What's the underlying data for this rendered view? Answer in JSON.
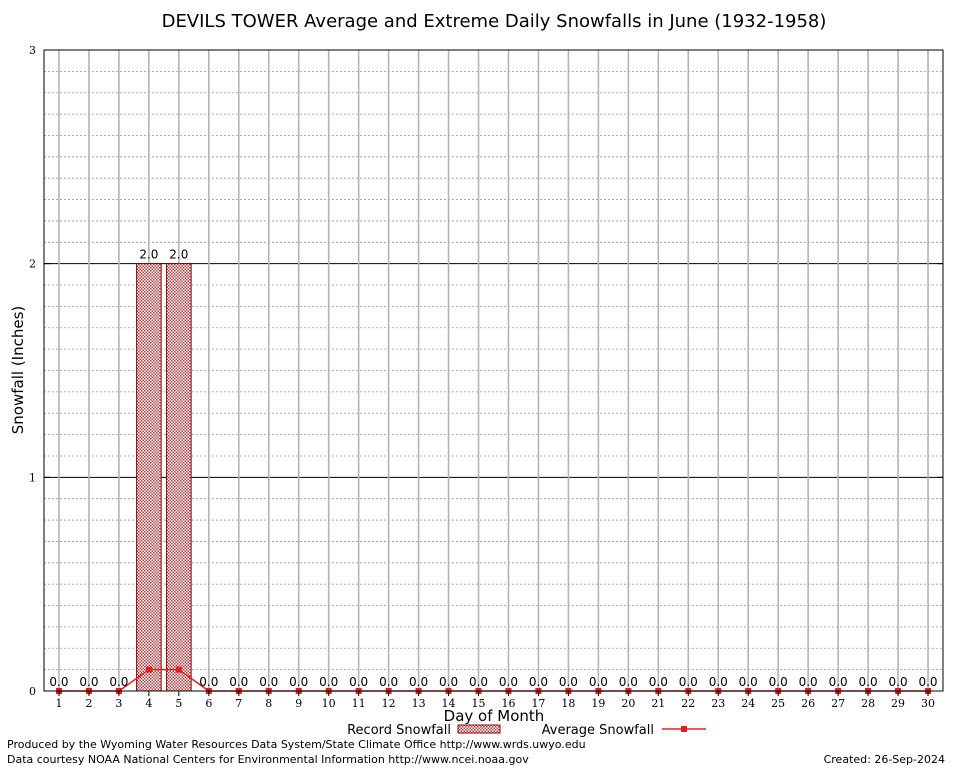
{
  "chart_data": {
    "type": "bar",
    "title": "DEVILS TOWER Average and Extreme Daily Snowfalls in June (1932-1958)",
    "xlabel": "Day of Month",
    "ylabel": "Snowfall (Inches)",
    "ylim": [
      0,
      3
    ],
    "yticks": [
      "0",
      "1",
      "2",
      "3"
    ],
    "grid": true,
    "categories": [
      "1",
      "2",
      "3",
      "4",
      "5",
      "6",
      "7",
      "8",
      "9",
      "10",
      "11",
      "12",
      "13",
      "14",
      "15",
      "16",
      "17",
      "18",
      "19",
      "20",
      "21",
      "22",
      "23",
      "24",
      "25",
      "26",
      "27",
      "28",
      "29",
      "30"
    ],
    "series": [
      {
        "name": "Record Snowfall",
        "kind": "bar",
        "color": "#cc0000",
        "values": [
          0,
          0,
          0,
          2.0,
          2.0,
          0,
          0,
          0,
          0,
          0,
          0,
          0,
          0,
          0,
          0,
          0,
          0,
          0,
          0,
          0,
          0,
          0,
          0,
          0,
          0,
          0,
          0,
          0,
          0,
          0
        ],
        "labels": [
          "0.0",
          "0.0",
          "0.0",
          "2.0",
          "2.0",
          "0.0",
          "0.0",
          "0.0",
          "0.0",
          "0.0",
          "0.0",
          "0.0",
          "0.0",
          "0.0",
          "0.0",
          "0.0",
          "0.0",
          "0.0",
          "0.0",
          "0.0",
          "0.0",
          "0.0",
          "0.0",
          "0.0",
          "0.0",
          "0.0",
          "0.0",
          "0.0",
          "0.0",
          "0.0"
        ]
      },
      {
        "name": "Average Snowfall",
        "kind": "line",
        "color": "#e02020",
        "values": [
          0,
          0,
          0,
          0.1,
          0.1,
          0,
          0,
          0,
          0,
          0,
          0,
          0,
          0,
          0,
          0,
          0,
          0,
          0,
          0,
          0,
          0,
          0,
          0,
          0,
          0,
          0,
          0,
          0,
          0,
          0
        ]
      }
    ],
    "legend_position": "bottom-center"
  },
  "footer": {
    "produced_by": "Produced by the Wyoming Water Resources Data System/State Climate Office http://www.wrds.uwyo.edu",
    "courtesy": "Data courtesy NOAA National Centers for Environmental Information http://www.ncei.noaa.gov",
    "created": "Created:  26-Sep-2024"
  }
}
